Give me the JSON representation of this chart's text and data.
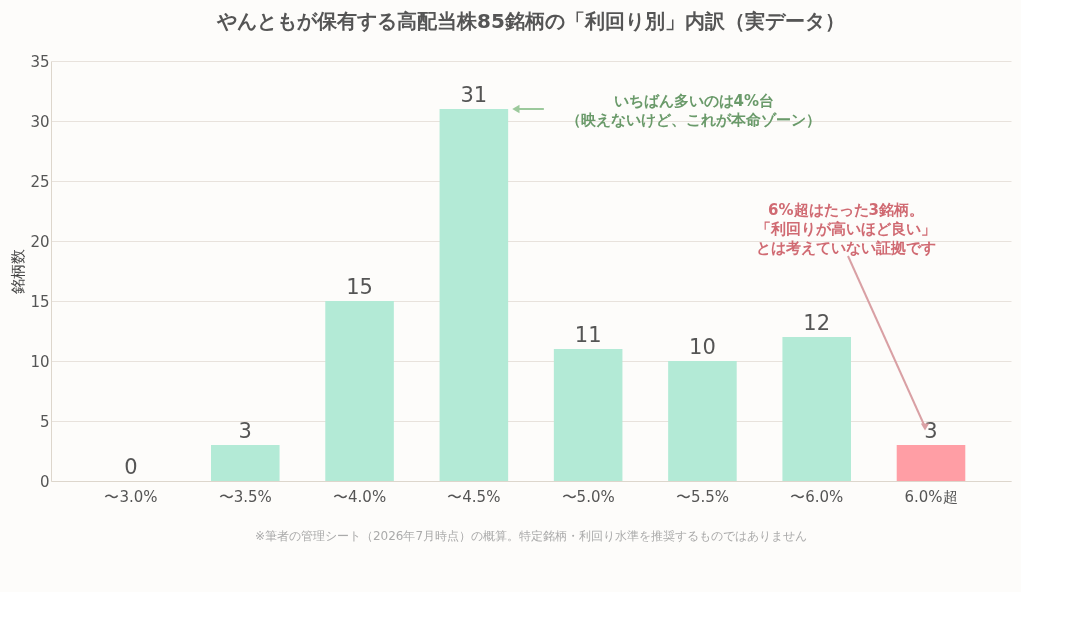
{
  "chart_data": {
    "type": "bar",
    "title": "やんともが保有する高配当株85銘柄の「利回り別」内訳（実データ）",
    "ylabel": "銘柄数",
    "categories": [
      "〜3.0%",
      "〜3.5%",
      "〜4.0%",
      "〜4.5%",
      "〜5.0%",
      "〜5.5%",
      "〜6.0%",
      "6.0%超"
    ],
    "values": [
      0,
      3,
      15,
      31,
      11,
      10,
      12,
      3
    ],
    "colors": [
      "#b3ead6",
      "#b3ead6",
      "#b3ead6",
      "#b3ead6",
      "#b3ead6",
      "#b3ead6",
      "#b3ead6",
      "#ff9ea5"
    ],
    "ylim": [
      0,
      35
    ],
    "yticks": [
      0,
      5,
      10,
      15,
      20,
      25,
      30,
      35
    ],
    "grid": "y",
    "data_labels": true,
    "annotations": [
      "いちばん多いのは4%台（映えないけど、これが本命ゾーン）",
      "6%超はたった3銘柄。「利回りが高いほど良い」とは考えていない証拠です",
      "※筆者の管理シート（2026年7月時点）の概算。特定銘柄・利回り水準を推奨するものではありません"
    ]
  }
}
